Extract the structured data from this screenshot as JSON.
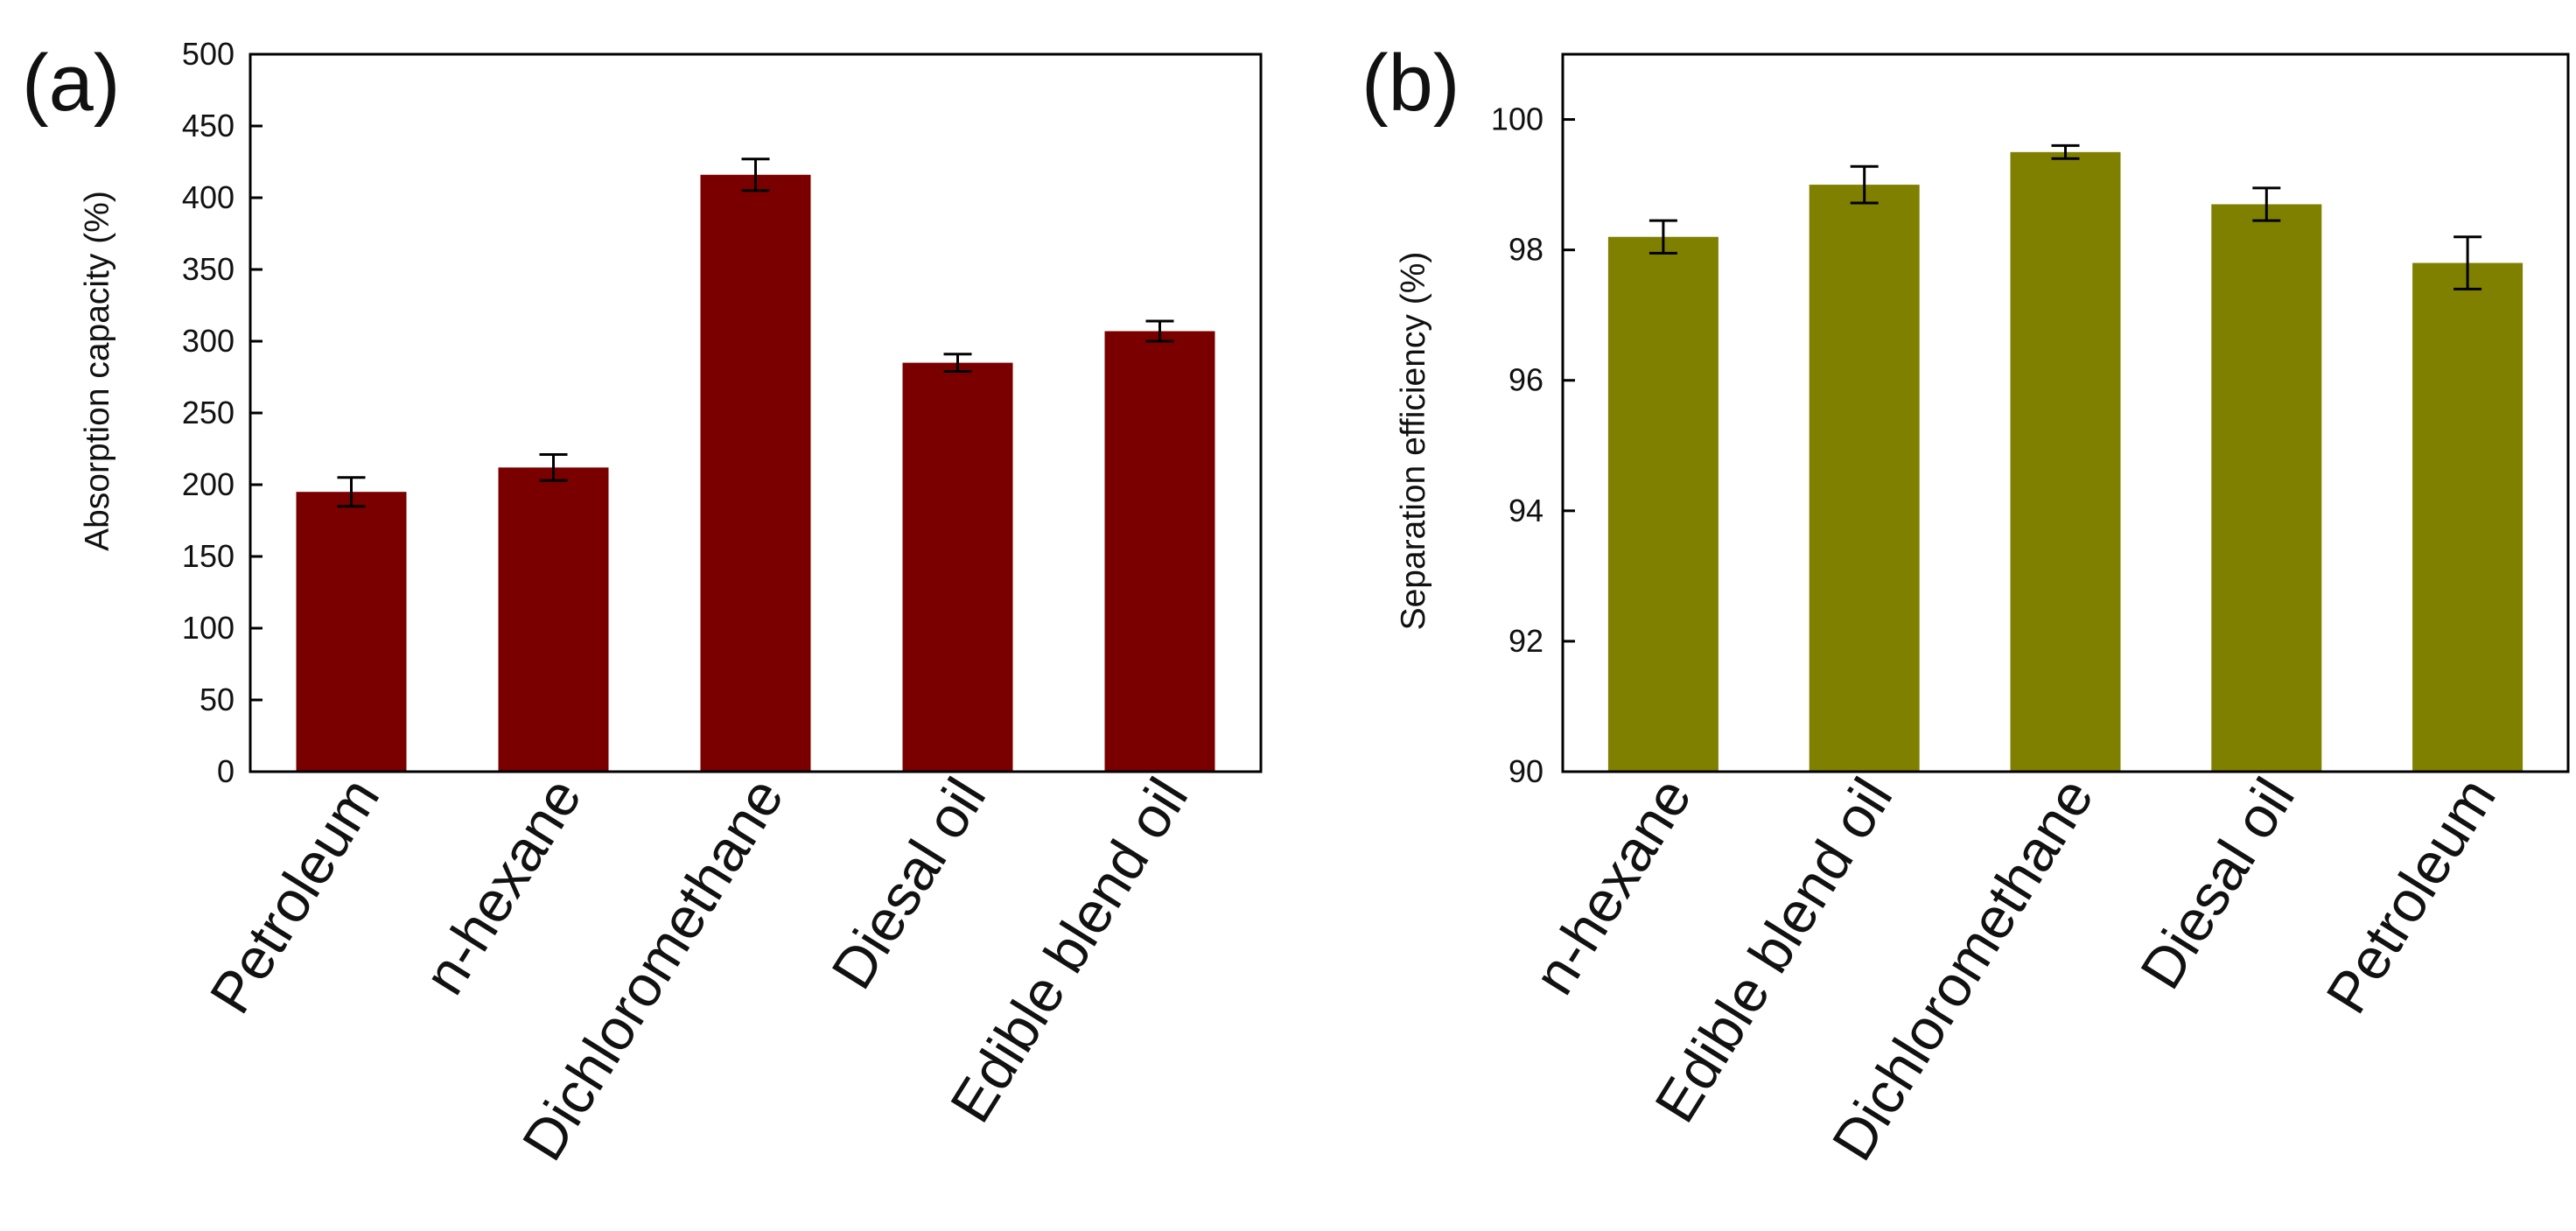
{
  "chart_data": [
    {
      "panel_label": "(a)",
      "type": "bar",
      "categories": [
        "Petroleum",
        "n-hexane",
        "Dichloromethane",
        "Diesal oil",
        "Edible blend oil"
      ],
      "values": [
        195,
        212,
        416,
        285,
        307
      ],
      "errors": [
        10,
        9,
        11,
        6,
        7
      ],
      "ylabel": "Absorption capacity (%)",
      "xlabel": "",
      "ylim": [
        0,
        500
      ],
      "yticks": [
        0,
        50,
        100,
        150,
        200,
        250,
        300,
        350,
        400,
        450,
        500
      ],
      "bar_color": "#7a0000"
    },
    {
      "panel_label": "(b)",
      "type": "bar",
      "categories": [
        "n-hexane",
        "Edible blend oil",
        "Dichloromethane",
        "Diesal oil",
        "Petroleum"
      ],
      "values": [
        98.2,
        99.0,
        99.5,
        98.7,
        97.8
      ],
      "errors": [
        0.25,
        0.28,
        0.1,
        0.25,
        0.4
      ],
      "ylabel": "Separation efficiency (%)",
      "xlabel": "",
      "ylim": [
        90,
        101
      ],
      "yticks": [
        90,
        92,
        94,
        96,
        98,
        100
      ],
      "bar_color": "#808000"
    }
  ]
}
